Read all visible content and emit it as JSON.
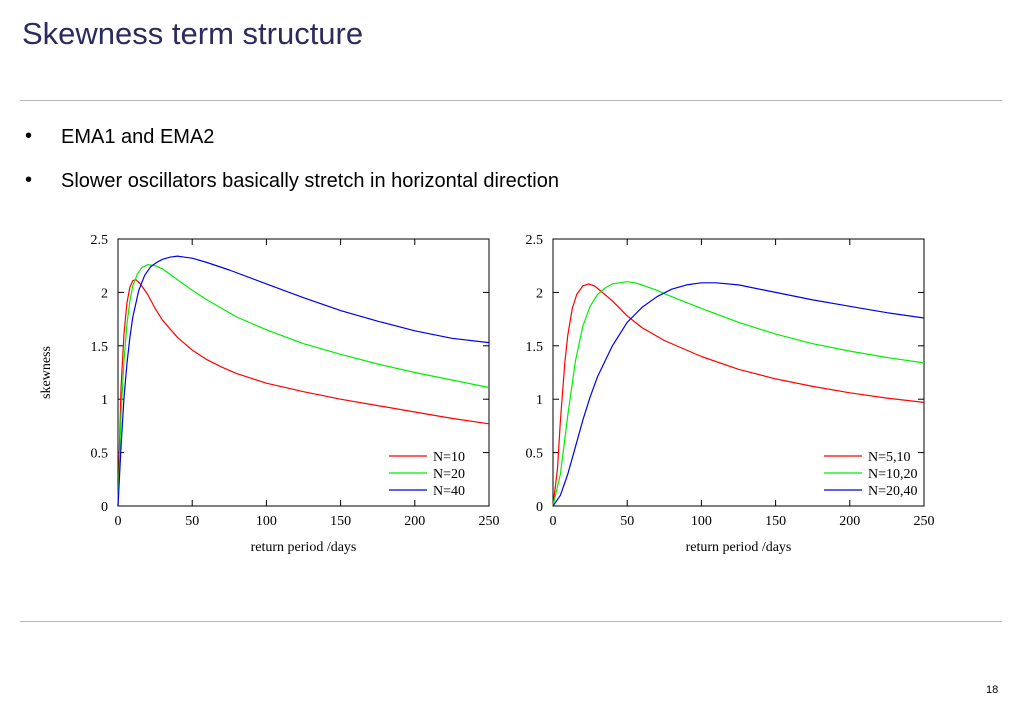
{
  "slide": {
    "title": "Skewness term structure",
    "bullets": [
      "EMA1 and EMA2",
      "Slower oscillators basically stretch in horizontal direction"
    ],
    "page_number": "18"
  },
  "chart_data": [
    {
      "type": "line",
      "xlabel": "return period /days",
      "ylabel": "skewness",
      "xlim": [
        0,
        250
      ],
      "ylim": [
        0,
        2.5
      ],
      "xticks": [
        "0",
        "50",
        "100",
        "150",
        "200",
        "250"
      ],
      "yticks": [
        "0",
        "0.5",
        "1",
        "1.5",
        "2",
        "2.5"
      ],
      "legend_position": "bottom-right",
      "series": [
        {
          "name": "N=10",
          "color": "#ff0000",
          "x": [
            0,
            2,
            4,
            6,
            8,
            10,
            12,
            15,
            20,
            25,
            30,
            40,
            50,
            60,
            70,
            80,
            100,
            125,
            150,
            175,
            200,
            225,
            250
          ],
          "y": [
            0,
            1.1,
            1.6,
            1.9,
            2.05,
            2.11,
            2.12,
            2.08,
            1.98,
            1.85,
            1.74,
            1.58,
            1.46,
            1.37,
            1.3,
            1.24,
            1.15,
            1.07,
            1.0,
            0.94,
            0.88,
            0.82,
            0.77
          ]
        },
        {
          "name": "N=20",
          "color": "#00ee00",
          "x": [
            0,
            2,
            4,
            6,
            8,
            10,
            13,
            16,
            20,
            25,
            30,
            40,
            50,
            60,
            80,
            100,
            125,
            150,
            175,
            200,
            225,
            250
          ],
          "y": [
            0,
            0.85,
            1.35,
            1.7,
            1.92,
            2.06,
            2.17,
            2.23,
            2.26,
            2.25,
            2.22,
            2.12,
            2.02,
            1.93,
            1.77,
            1.65,
            1.52,
            1.42,
            1.33,
            1.25,
            1.18,
            1.11
          ]
        },
        {
          "name": "N=40",
          "color": "#0000ee",
          "x": [
            0,
            2,
            4,
            6,
            8,
            10,
            14,
            18,
            22,
            26,
            30,
            35,
            40,
            45,
            50,
            60,
            75,
            100,
            125,
            150,
            175,
            200,
            225,
            250
          ],
          "y": [
            0,
            0.55,
            1.0,
            1.33,
            1.58,
            1.77,
            2.02,
            2.16,
            2.24,
            2.28,
            2.31,
            2.33,
            2.34,
            2.33,
            2.32,
            2.28,
            2.21,
            2.08,
            1.95,
            1.83,
            1.73,
            1.64,
            1.57,
            1.53
          ]
        }
      ]
    },
    {
      "type": "line",
      "xlabel": "return period /days",
      "ylabel": "",
      "xlim": [
        0,
        250
      ],
      "ylim": [
        0,
        2.5
      ],
      "xticks": [
        "0",
        "50",
        "100",
        "150",
        "200",
        "250"
      ],
      "yticks": [
        "0",
        "0.5",
        "1",
        "1.5",
        "2",
        "2.5"
      ],
      "legend_position": "bottom-right",
      "series": [
        {
          "name": "N=5,10",
          "color": "#ff0000",
          "x": [
            0,
            3,
            5,
            8,
            10,
            13,
            16,
            20,
            24,
            28,
            35,
            40,
            50,
            60,
            75,
            100,
            125,
            150,
            175,
            200,
            225,
            250
          ],
          "y": [
            0,
            0.35,
            0.8,
            1.35,
            1.6,
            1.85,
            1.98,
            2.06,
            2.08,
            2.06,
            1.98,
            1.92,
            1.78,
            1.67,
            1.55,
            1.4,
            1.28,
            1.19,
            1.12,
            1.06,
            1.01,
            0.97
          ]
        },
        {
          "name": "N=10,20",
          "color": "#00ee00",
          "x": [
            0,
            5,
            10,
            15,
            20,
            25,
            30,
            35,
            40,
            45,
            50,
            55,
            60,
            70,
            80,
            100,
            125,
            150,
            175,
            200,
            225,
            250
          ],
          "y": [
            0,
            0.3,
            0.85,
            1.35,
            1.68,
            1.87,
            1.98,
            2.04,
            2.08,
            2.09,
            2.1,
            2.09,
            2.07,
            2.02,
            1.96,
            1.85,
            1.72,
            1.61,
            1.52,
            1.45,
            1.39,
            1.34
          ]
        },
        {
          "name": "N=20,40",
          "color": "#0000ee",
          "x": [
            0,
            5,
            10,
            15,
            20,
            25,
            30,
            40,
            50,
            60,
            70,
            80,
            90,
            100,
            110,
            125,
            150,
            175,
            200,
            225,
            250
          ],
          "y": [
            0,
            0.1,
            0.3,
            0.55,
            0.8,
            1.02,
            1.21,
            1.5,
            1.72,
            1.86,
            1.96,
            2.03,
            2.07,
            2.09,
            2.09,
            2.07,
            2.0,
            1.93,
            1.87,
            1.81,
            1.76
          ]
        }
      ]
    }
  ]
}
